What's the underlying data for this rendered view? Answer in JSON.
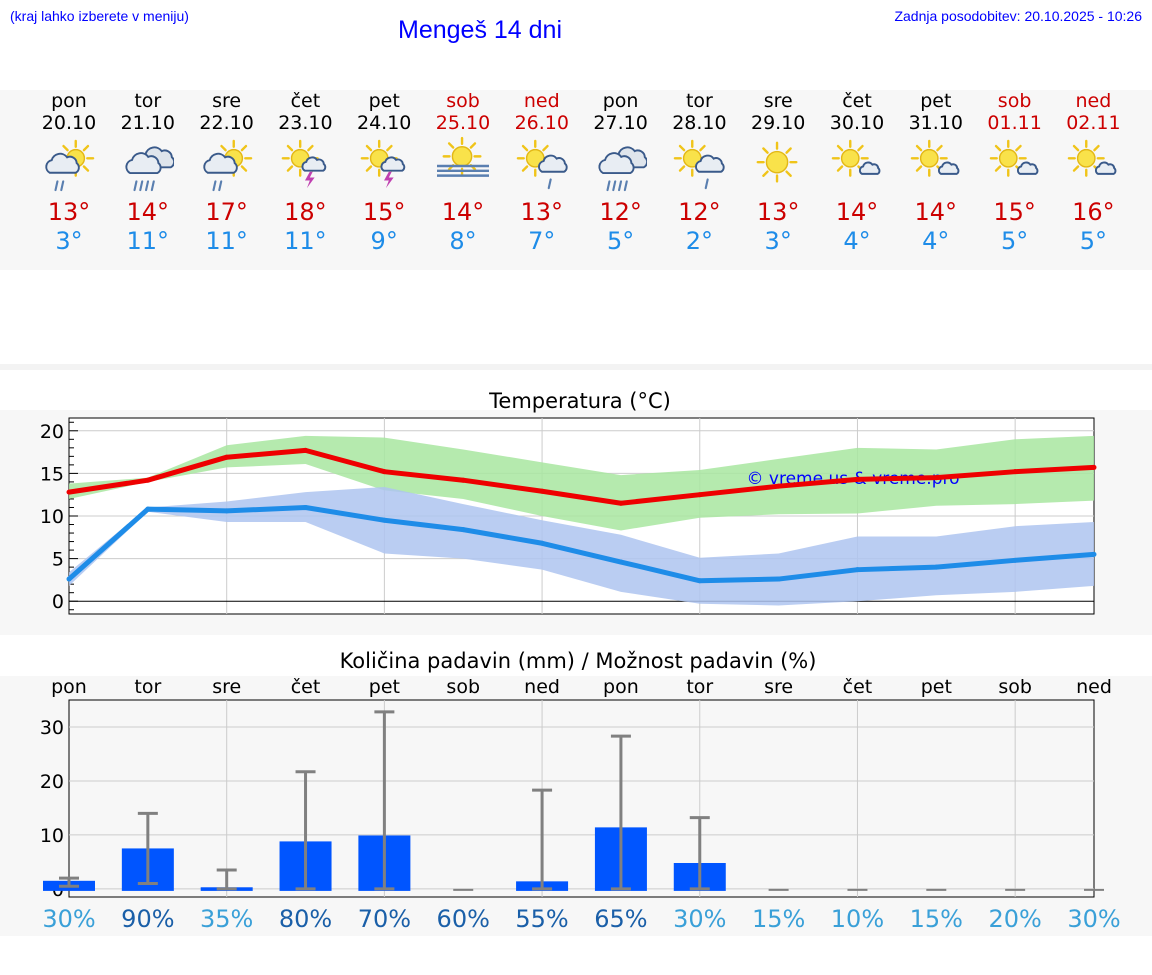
{
  "header": {
    "menu_hint": "(kraj lahko izberete v meniju)",
    "title": "Mengeš 14 dni",
    "updated": "Zadnja posodobitev: 20.10.2025 - 10:26"
  },
  "colors": {
    "weekday": "#000000",
    "weekend": "#cc0000",
    "tmax": "#cc0000",
    "tmin": "#1e8ce8",
    "link": "#0000ff"
  },
  "days": [
    {
      "name": "pon",
      "date": "20.10",
      "weekend": false,
      "icon": "sun-cloud-rain-icon",
      "tmax": "13°",
      "tmin": "3°"
    },
    {
      "name": "tor",
      "date": "21.10",
      "weekend": false,
      "icon": "heavy-rain-cloud-icon",
      "tmax": "14°",
      "tmin": "11°"
    },
    {
      "name": "sre",
      "date": "22.10",
      "weekend": false,
      "icon": "sun-cloud-rain-icon",
      "tmax": "17°",
      "tmin": "11°"
    },
    {
      "name": "čet",
      "date": "23.10",
      "weekend": false,
      "icon": "sun-thunderstorm-icon",
      "tmax": "18°",
      "tmin": "11°"
    },
    {
      "name": "pet",
      "date": "24.10",
      "weekend": false,
      "icon": "sun-thunderstorm-icon",
      "tmax": "15°",
      "tmin": "9°"
    },
    {
      "name": "sob",
      "date": "25.10",
      "weekend": true,
      "icon": "sun-fog-icon",
      "tmax": "14°",
      "tmin": "8°"
    },
    {
      "name": "ned",
      "date": "26.10",
      "weekend": true,
      "icon": "sun-cloud-drizzle-icon",
      "tmax": "13°",
      "tmin": "7°"
    },
    {
      "name": "pon",
      "date": "27.10",
      "weekend": false,
      "icon": "heavy-rain-cloud-icon",
      "tmax": "12°",
      "tmin": "5°"
    },
    {
      "name": "tor",
      "date": "28.10",
      "weekend": false,
      "icon": "sun-cloud-drizzle-icon",
      "tmax": "12°",
      "tmin": "2°"
    },
    {
      "name": "sre",
      "date": "29.10",
      "weekend": false,
      "icon": "sun-icon",
      "tmax": "13°",
      "tmin": "3°"
    },
    {
      "name": "čet",
      "date": "30.10",
      "weekend": false,
      "icon": "sun-small-cloud-icon",
      "tmax": "14°",
      "tmin": "4°"
    },
    {
      "name": "pet",
      "date": "31.10",
      "weekend": false,
      "icon": "sun-small-cloud-icon",
      "tmax": "14°",
      "tmin": "4°"
    },
    {
      "name": "sob",
      "date": "01.11",
      "weekend": true,
      "icon": "sun-small-cloud-icon",
      "tmax": "15°",
      "tmin": "5°"
    },
    {
      "name": "ned",
      "date": "02.11",
      "weekend": true,
      "icon": "sun-small-cloud-icon",
      "tmax": "16°",
      "tmin": "5°"
    }
  ],
  "chart_data": [
    {
      "type": "line",
      "title": "Temperatura (°C)",
      "watermark": "© vreme.us & vreme.pro",
      "x": [
        0,
        1,
        2,
        3,
        4,
        5,
        6,
        7,
        8,
        9,
        10,
        11,
        12,
        13
      ],
      "ylim": [
        -1.5,
        21.5
      ],
      "yticks": [
        0,
        5,
        10,
        15,
        20
      ],
      "grid": true,
      "series": [
        {
          "name": "max",
          "color": "#ee0000",
          "values": [
            12.8,
            14.2,
            16.9,
            17.7,
            15.2,
            14.2,
            12.9,
            11.5,
            12.5,
            13.5,
            14.3,
            14.5,
            15.2,
            15.7
          ],
          "band_low": [
            12.0,
            14.0,
            15.7,
            16.1,
            13.0,
            12.0,
            10.0,
            8.3,
            9.8,
            10.2,
            10.3,
            11.2,
            11.4,
            11.8
          ],
          "band_high": [
            13.8,
            14.5,
            18.3,
            19.4,
            19.2,
            17.8,
            16.3,
            14.8,
            15.4,
            16.7,
            18.0,
            17.8,
            19.0,
            19.4
          ],
          "band_color": "#a8e6a0"
        },
        {
          "name": "min",
          "color": "#1e8ce8",
          "values": [
            2.6,
            10.8,
            10.6,
            11.0,
            9.5,
            8.4,
            6.8,
            4.6,
            2.4,
            2.6,
            3.7,
            4.0,
            4.8,
            5.5
          ],
          "band_low": [
            1.8,
            10.5,
            9.3,
            9.3,
            5.6,
            5.0,
            3.7,
            1.1,
            -0.3,
            -0.5,
            0.0,
            0.7,
            1.1,
            1.8
          ],
          "band_high": [
            3.4,
            11.0,
            11.7,
            12.8,
            13.4,
            11.4,
            9.5,
            7.8,
            5.1,
            5.6,
            7.6,
            7.6,
            8.8,
            9.3
          ],
          "band_color": "#aec4f0"
        }
      ]
    },
    {
      "type": "bar",
      "title": "Količina padavin (mm) / Možnost padavin (%)",
      "categories": [
        "pon",
        "tor",
        "sre",
        "čet",
        "pet",
        "sob",
        "ned",
        "pon",
        "tor",
        "sre",
        "čet",
        "pet",
        "sob",
        "ned"
      ],
      "values": [
        1.5,
        7.5,
        0.3,
        8.8,
        9.9,
        0.0,
        1.4,
        11.4,
        4.8,
        0.0,
        0.0,
        0.0,
        0.0,
        0.0
      ],
      "error_low": [
        0.5,
        1.0,
        0.0,
        0.0,
        0.0,
        0.0,
        0.0,
        0.0,
        0.0,
        0.0,
        0.0,
        0.0,
        0.0,
        0.0
      ],
      "error_high": [
        2.0,
        14.0,
        3.5,
        21.7,
        32.8,
        0.0,
        18.3,
        28.3,
        13.2,
        0.0,
        0.0,
        0.0,
        0.0,
        0.0
      ],
      "probability": [
        "30%",
        "90%",
        "35%",
        "80%",
        "70%",
        "60%",
        "55%",
        "65%",
        "30%",
        "15%",
        "10%",
        "15%",
        "20%",
        "30%"
      ],
      "probability_colors": [
        "#3aa0d8",
        "#1a5fa8",
        "#3aa0d8",
        "#1a5fa8",
        "#1a5fa8",
        "#1a5fa8",
        "#1a5fa8",
        "#1a5fa8",
        "#3aa0d8",
        "#3aa0d8",
        "#3aa0d8",
        "#3aa0d8",
        "#3aa0d8",
        "#3aa0d8"
      ],
      "ylim": [
        -1.5,
        35
      ],
      "yticks": [
        0,
        10,
        20,
        30
      ],
      "bar_color": "#0055ff",
      "errorbar_color": "#808080"
    }
  ]
}
